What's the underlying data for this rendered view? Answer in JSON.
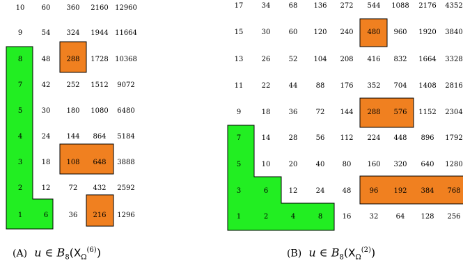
{
  "colors": {
    "highlight_green": "#22ee22",
    "highlight_orange": "#f08020",
    "border": "#000000"
  },
  "panel_a": {
    "caption": {
      "label": "(A)",
      "math": "u ∈ B8(XΩ(6))"
    },
    "rows": [
      [
        "10",
        "60",
        "360",
        "2160",
        "12960"
      ],
      [
        "9",
        "54",
        "324",
        "1944",
        "11664"
      ],
      [
        "8",
        "48",
        "288",
        "1728",
        "10368"
      ],
      [
        "7",
        "42",
        "252",
        "1512",
        "9072"
      ],
      [
        "5",
        "30",
        "180",
        "1080",
        "6480"
      ],
      [
        "4",
        "24",
        "144",
        "864",
        "5184"
      ],
      [
        "3",
        "18",
        "108",
        "648",
        "3888"
      ],
      [
        "2",
        "12",
        "72",
        "432",
        "2592"
      ],
      [
        "1",
        "6",
        "36",
        "216",
        "1296"
      ]
    ],
    "green_cells": [
      [
        2,
        0
      ],
      [
        3,
        0
      ],
      [
        4,
        0
      ],
      [
        5,
        0
      ],
      [
        6,
        0
      ],
      [
        7,
        0
      ],
      [
        8,
        0
      ],
      [
        8,
        1
      ]
    ],
    "orange_cells": [
      [
        2,
        2
      ],
      [
        5,
        2
      ],
      [
        5,
        3
      ],
      [
        7,
        3
      ]
    ]
  },
  "panel_b": {
    "caption": {
      "label": "(B)",
      "math": "u ∈ B8(XΩ(2))"
    },
    "rows": [
      [
        "17",
        "34",
        "68",
        "136",
        "272",
        "544",
        "1088",
        "2176",
        "4352"
      ],
      [
        "15",
        "30",
        "60",
        "120",
        "240",
        "480",
        "960",
        "1920",
        "3840"
      ],
      [
        "13",
        "26",
        "52",
        "104",
        "208",
        "416",
        "832",
        "1664",
        "3328"
      ],
      [
        "11",
        "22",
        "44",
        "88",
        "176",
        "352",
        "704",
        "1408",
        "2816"
      ],
      [
        "9",
        "18",
        "36",
        "72",
        "144",
        "288",
        "576",
        "1152",
        "2304"
      ],
      [
        "7",
        "14",
        "28",
        "56",
        "112",
        "224",
        "448",
        "896",
        "1792"
      ],
      [
        "5",
        "10",
        "20",
        "40",
        "80",
        "160",
        "320",
        "640",
        "1280"
      ],
      [
        "3",
        "6",
        "12",
        "24",
        "48",
        "96",
        "192",
        "384",
        "768"
      ],
      [
        "1",
        "2",
        "4",
        "8",
        "16",
        "32",
        "64",
        "128",
        "256"
      ]
    ],
    "green_cells": [
      [
        5,
        0
      ],
      [
        6,
        0
      ],
      [
        7,
        0
      ],
      [
        7,
        1
      ],
      [
        8,
        0
      ],
      [
        8,
        1
      ],
      [
        8,
        2
      ],
      [
        8,
        3
      ]
    ],
    "orange_cells": [
      [
        1,
        5
      ],
      [
        4,
        5
      ],
      [
        4,
        6
      ],
      [
        7,
        5
      ],
      [
        7,
        6
      ],
      [
        7,
        7
      ],
      [
        7,
        8
      ]
    ]
  }
}
